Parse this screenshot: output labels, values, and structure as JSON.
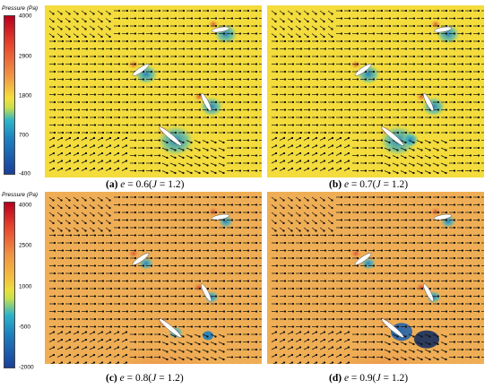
{
  "colorbars": [
    {
      "title": "Pressure (Pa)",
      "ticks": [
        "4000",
        "2900",
        "1800",
        "700",
        "-400"
      ]
    },
    {
      "title": "Pressure (Pa)",
      "ticks": [
        "4000",
        "2500",
        "1000",
        "-500",
        "-2000"
      ]
    }
  ],
  "panels": [
    {
      "id": "a",
      "label": "(a)",
      "var": "e",
      "eq1": " = 0.6(",
      "var2": "J",
      "eq2": " = 1.2)",
      "bg": "#f3dc3c"
    },
    {
      "id": "b",
      "label": "(b)",
      "var": "e",
      "eq1": " = 0.7(",
      "var2": "J",
      "eq2": " = 1.2)",
      "bg": "#f3dc3c"
    },
    {
      "id": "c",
      "label": "(c)",
      "var": "e",
      "eq1": " = 0.8(",
      "var2": "J",
      "eq2": " = 1.2)",
      "bg": "#efae55"
    },
    {
      "id": "d",
      "label": "(d)",
      "var": "e",
      "eq1": " = 0.9(",
      "var2": "J",
      "eq2": " = 1.2)",
      "bg": "#efae55"
    }
  ],
  "colors": {
    "field_yellow": "#f3dc3c",
    "field_orange": "#efae55",
    "suction_blue": "#1c7fc0",
    "deep_blue": "#16305f",
    "high_red": "#d9482b"
  }
}
